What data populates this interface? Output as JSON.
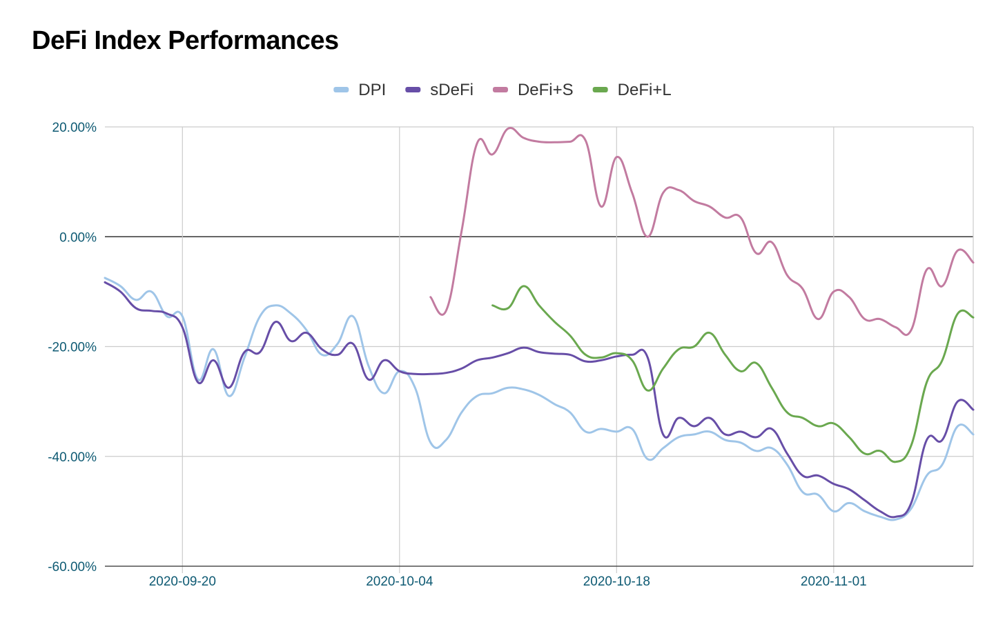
{
  "chart_data": {
    "type": "line",
    "title": "DeFi Index Performances",
    "xlabel": "",
    "ylabel": "",
    "x_tick_labels": [
      "2020-09-20",
      "2020-10-04",
      "2020-10-18",
      "2020-11-01"
    ],
    "y_tick_labels": [
      "20.00%",
      "0.00%",
      "-20.00%",
      "-40.00%",
      "-60.00%"
    ],
    "y_ticks": [
      20,
      0,
      -20,
      -40,
      -60
    ],
    "ylim": [
      -60,
      20
    ],
    "xlim": [
      "2020-09-15",
      "2020-11-10"
    ],
    "grid": true,
    "legend_position": "top",
    "series": [
      {
        "name": "DPI",
        "color": "#9fc5e8",
        "points": [
          [
            "2020-09-15",
            -7.5
          ],
          [
            "2020-09-16",
            -9.0
          ],
          [
            "2020-09-17",
            -11.5
          ],
          [
            "2020-09-18",
            -10.0
          ],
          [
            "2020-09-19",
            -14.5
          ],
          [
            "2020-09-20",
            -14.5
          ],
          [
            "2020-09-21",
            -26.0
          ],
          [
            "2020-09-22",
            -20.5
          ],
          [
            "2020-09-23",
            -29.0
          ],
          [
            "2020-09-24",
            -22.0
          ],
          [
            "2020-09-25",
            -14.5
          ],
          [
            "2020-09-26",
            -12.5
          ],
          [
            "2020-09-27",
            -14.0
          ],
          [
            "2020-09-28",
            -17.0
          ],
          [
            "2020-09-29",
            -21.5
          ],
          [
            "2020-09-30",
            -19.5
          ],
          [
            "2020-10-01",
            -14.5
          ],
          [
            "2020-10-02",
            -23.5
          ],
          [
            "2020-10-03",
            -28.5
          ],
          [
            "2020-10-04",
            -24.5
          ],
          [
            "2020-10-05",
            -27.5
          ],
          [
            "2020-10-06",
            -37.5
          ],
          [
            "2020-10-07",
            -37.0
          ],
          [
            "2020-10-08",
            -32.0
          ],
          [
            "2020-10-09",
            -29.0
          ],
          [
            "2020-10-10",
            -28.5
          ],
          [
            "2020-10-11",
            -27.5
          ],
          [
            "2020-10-12",
            -27.8
          ],
          [
            "2020-10-13",
            -28.8
          ],
          [
            "2020-10-14",
            -30.5
          ],
          [
            "2020-10-15",
            -32.0
          ],
          [
            "2020-10-16",
            -35.5
          ],
          [
            "2020-10-17",
            -35.0
          ],
          [
            "2020-10-18",
            -35.5
          ],
          [
            "2020-10-19",
            -35.0
          ],
          [
            "2020-10-20",
            -40.5
          ],
          [
            "2020-10-21",
            -38.5
          ],
          [
            "2020-10-22",
            -36.5
          ],
          [
            "2020-10-23",
            -36.0
          ],
          [
            "2020-10-24",
            -35.5
          ],
          [
            "2020-10-25",
            -37.0
          ],
          [
            "2020-10-26",
            -37.5
          ],
          [
            "2020-10-27",
            -39.0
          ],
          [
            "2020-10-28",
            -38.5
          ],
          [
            "2020-10-29",
            -41.5
          ],
          [
            "2020-10-30",
            -46.5
          ],
          [
            "2020-10-31",
            -47.0
          ],
          [
            "2020-11-01",
            -50.0
          ],
          [
            "2020-11-02",
            -48.5
          ],
          [
            "2020-11-03",
            -50.0
          ],
          [
            "2020-11-04",
            -51.0
          ],
          [
            "2020-11-05",
            -51.5
          ],
          [
            "2020-11-06",
            -49.5
          ],
          [
            "2020-11-07",
            -43.5
          ],
          [
            "2020-11-08",
            -41.5
          ],
          [
            "2020-11-09",
            -34.5
          ],
          [
            "2020-11-10",
            -36.0
          ]
        ]
      },
      {
        "name": "sDeFi",
        "color": "#674ea7",
        "points": [
          [
            "2020-09-15",
            -8.3
          ],
          [
            "2020-09-16",
            -10.0
          ],
          [
            "2020-09-17",
            -13.0
          ],
          [
            "2020-09-18",
            -13.5
          ],
          [
            "2020-09-19",
            -14.0
          ],
          [
            "2020-09-20",
            -16.5
          ],
          [
            "2020-09-21",
            -26.5
          ],
          [
            "2020-09-22",
            -22.5
          ],
          [
            "2020-09-23",
            -27.5
          ],
          [
            "2020-09-24",
            -21.0
          ],
          [
            "2020-09-25",
            -21.0
          ],
          [
            "2020-09-26",
            -15.5
          ],
          [
            "2020-09-27",
            -19.0
          ],
          [
            "2020-09-28",
            -17.5
          ],
          [
            "2020-09-29",
            -20.5
          ],
          [
            "2020-09-30",
            -21.5
          ],
          [
            "2020-10-01",
            -19.5
          ],
          [
            "2020-10-02",
            -26.0
          ],
          [
            "2020-10-03",
            -22.5
          ],
          [
            "2020-10-04",
            -24.5
          ],
          [
            "2020-10-05",
            -25.0
          ],
          [
            "2020-10-06",
            -25.0
          ],
          [
            "2020-10-07",
            -24.8
          ],
          [
            "2020-10-08",
            -24.0
          ],
          [
            "2020-10-09",
            -22.5
          ],
          [
            "2020-10-10",
            -22.0
          ],
          [
            "2020-10-11",
            -21.2
          ],
          [
            "2020-10-12",
            -20.2
          ],
          [
            "2020-10-13",
            -21.0
          ],
          [
            "2020-10-14",
            -21.3
          ],
          [
            "2020-10-15",
            -21.5
          ],
          [
            "2020-10-16",
            -22.7
          ],
          [
            "2020-10-17",
            -22.5
          ],
          [
            "2020-10-18",
            -21.8
          ],
          [
            "2020-10-19",
            -21.5
          ],
          [
            "2020-10-20",
            -22.0
          ],
          [
            "2020-10-21",
            -36.0
          ],
          [
            "2020-10-22",
            -33.0
          ],
          [
            "2020-10-23",
            -34.5
          ],
          [
            "2020-10-24",
            -33.0
          ],
          [
            "2020-10-25",
            -36.0
          ],
          [
            "2020-10-26",
            -35.5
          ],
          [
            "2020-10-27",
            -36.5
          ],
          [
            "2020-10-28",
            -35.0
          ],
          [
            "2020-10-29",
            -39.5
          ],
          [
            "2020-10-30",
            -43.5
          ],
          [
            "2020-10-31",
            -43.5
          ],
          [
            "2020-11-01",
            -45.0
          ],
          [
            "2020-11-02",
            -46.0
          ],
          [
            "2020-11-03",
            -48.0
          ],
          [
            "2020-11-04",
            -50.0
          ],
          [
            "2020-11-05",
            -51.0
          ],
          [
            "2020-11-06",
            -48.5
          ],
          [
            "2020-11-07",
            -37.0
          ],
          [
            "2020-11-08",
            -37.0
          ],
          [
            "2020-11-09",
            -30.0
          ],
          [
            "2020-11-10",
            -31.5
          ]
        ]
      },
      {
        "name": "DeFi+S",
        "color": "#c27ba0",
        "points": [
          [
            "2020-10-06",
            -11.0
          ],
          [
            "2020-10-07",
            -13.5
          ],
          [
            "2020-10-08",
            1.0
          ],
          [
            "2020-10-09",
            17.0
          ],
          [
            "2020-10-10",
            15.0
          ],
          [
            "2020-10-11",
            19.7
          ],
          [
            "2020-10-12",
            18.0
          ],
          [
            "2020-10-13",
            17.3
          ],
          [
            "2020-10-14",
            17.2
          ],
          [
            "2020-10-15",
            17.3
          ],
          [
            "2020-10-16",
            17.5
          ],
          [
            "2020-10-17",
            5.5
          ],
          [
            "2020-10-18",
            14.5
          ],
          [
            "2020-10-19",
            8.0
          ],
          [
            "2020-10-20",
            0.0
          ],
          [
            "2020-10-21",
            8.0
          ],
          [
            "2020-10-22",
            8.5
          ],
          [
            "2020-10-23",
            6.5
          ],
          [
            "2020-10-24",
            5.5
          ],
          [
            "2020-10-25",
            3.5
          ],
          [
            "2020-10-26",
            3.5
          ],
          [
            "2020-10-27",
            -3.0
          ],
          [
            "2020-10-28",
            -1.0
          ],
          [
            "2020-10-29",
            -7.0
          ],
          [
            "2020-10-30",
            -9.5
          ],
          [
            "2020-10-31",
            -15.0
          ],
          [
            "2020-11-01",
            -10.0
          ],
          [
            "2020-11-02",
            -11.0
          ],
          [
            "2020-11-03",
            -15.0
          ],
          [
            "2020-11-04",
            -15.0
          ],
          [
            "2020-11-05",
            -16.5
          ],
          [
            "2020-11-06",
            -17.0
          ],
          [
            "2020-11-07",
            -6.0
          ],
          [
            "2020-11-08",
            -9.0
          ],
          [
            "2020-11-09",
            -2.5
          ],
          [
            "2020-11-10",
            -4.7
          ]
        ]
      },
      {
        "name": "DeFi+L",
        "color": "#6aa84f",
        "points": [
          [
            "2020-10-10",
            -12.5
          ],
          [
            "2020-10-11",
            -13.0
          ],
          [
            "2020-10-12",
            -9.0
          ],
          [
            "2020-10-13",
            -12.5
          ],
          [
            "2020-10-14",
            -15.5
          ],
          [
            "2020-10-15",
            -18.0
          ],
          [
            "2020-10-16",
            -21.5
          ],
          [
            "2020-10-17",
            -22.0
          ],
          [
            "2020-10-18",
            -21.2
          ],
          [
            "2020-10-19",
            -22.5
          ],
          [
            "2020-10-20",
            -28.0
          ],
          [
            "2020-10-21",
            -24.0
          ],
          [
            "2020-10-22",
            -20.5
          ],
          [
            "2020-10-23",
            -20.0
          ],
          [
            "2020-10-24",
            -17.5
          ],
          [
            "2020-10-25",
            -21.5
          ],
          [
            "2020-10-26",
            -24.5
          ],
          [
            "2020-10-27",
            -23.0
          ],
          [
            "2020-10-28",
            -27.5
          ],
          [
            "2020-10-29",
            -32.0
          ],
          [
            "2020-10-30",
            -33.0
          ],
          [
            "2020-10-31",
            -34.5
          ],
          [
            "2020-11-01",
            -34.0
          ],
          [
            "2020-11-02",
            -36.5
          ],
          [
            "2020-11-03",
            -39.5
          ],
          [
            "2020-11-04",
            -39.0
          ],
          [
            "2020-11-05",
            -41.0
          ],
          [
            "2020-11-06",
            -38.0
          ],
          [
            "2020-11-07",
            -26.5
          ],
          [
            "2020-11-08",
            -22.5
          ],
          [
            "2020-11-09",
            -14.0
          ],
          [
            "2020-11-10",
            -14.7
          ]
        ]
      }
    ]
  }
}
